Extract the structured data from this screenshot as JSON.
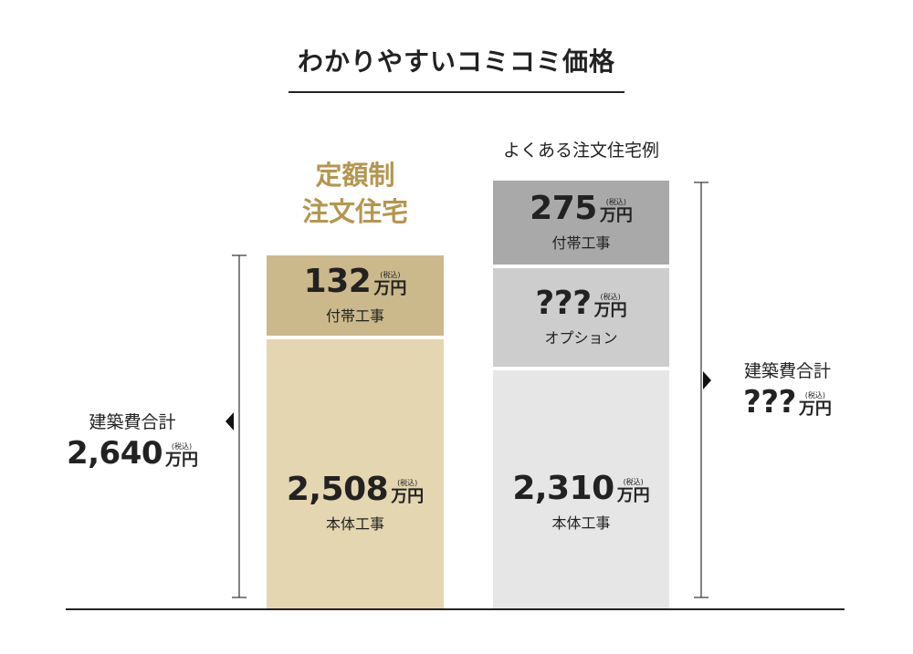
{
  "title": "わかりやすいコミコミ価格",
  "plans": [
    {
      "name_lines": [
        "定額制",
        "注文住宅"
      ],
      "total": {
        "label": "建築費合計",
        "amount": "2,640",
        "tax": "(税込)",
        "unit": "万円"
      },
      "segments": [
        {
          "amount": "132",
          "tax": "(税込)",
          "unit": "万円",
          "label": "付帯工事"
        },
        {
          "amount": "2,508",
          "tax": "(税込)",
          "unit": "万円",
          "label": "本体工事"
        }
      ]
    },
    {
      "name_lines": [
        "よくある注文住宅例"
      ],
      "total": {
        "label": "建築費合計",
        "amount": "???",
        "tax": "(税込)",
        "unit": "万円"
      },
      "segments": [
        {
          "amount": "275",
          "tax": "(税込)",
          "unit": "万円",
          "label": "付帯工事"
        },
        {
          "amount": "???",
          "tax": "(税込)",
          "unit": "万円",
          "label": "オプション"
        },
        {
          "amount": "2,310",
          "tax": "(税込)",
          "unit": "万円",
          "label": "本体工事"
        }
      ]
    }
  ]
}
